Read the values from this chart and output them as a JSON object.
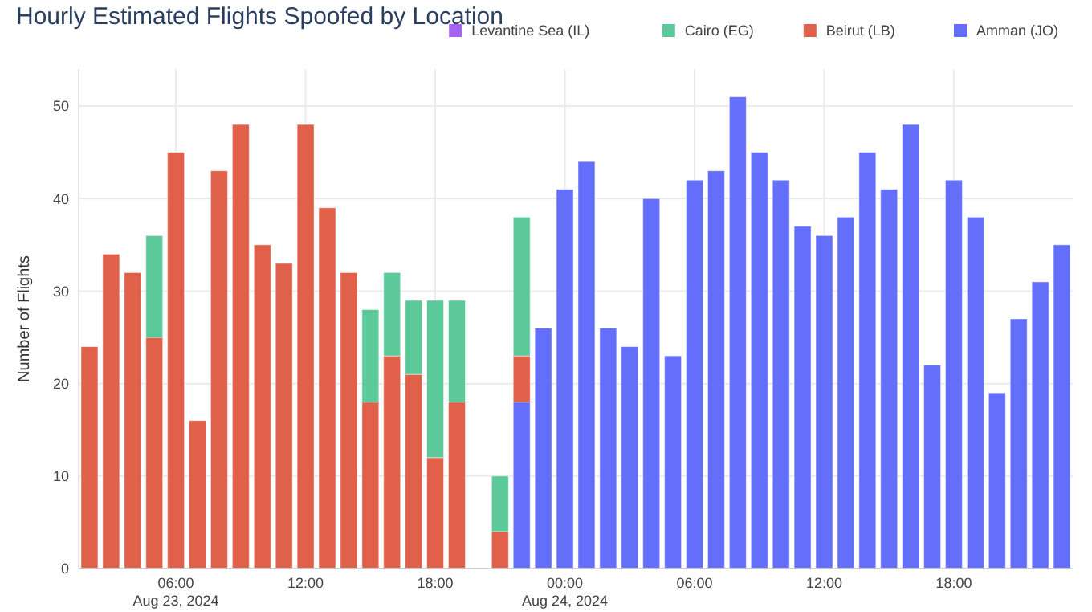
{
  "chart_data": {
    "type": "bar",
    "title": "Hourly Estimated Flights Spoofed by Location",
    "ylabel": "Number of Flights",
    "stacked": true,
    "grid": true,
    "legend": "top right",
    "x": [
      "2024-08-23T02:00",
      "2024-08-23T03:00",
      "2024-08-23T04:00",
      "2024-08-23T05:00",
      "2024-08-23T06:00",
      "2024-08-23T07:00",
      "2024-08-23T08:00",
      "2024-08-23T09:00",
      "2024-08-23T10:00",
      "2024-08-23T11:00",
      "2024-08-23T12:00",
      "2024-08-23T13:00",
      "2024-08-23T14:00",
      "2024-08-23T15:00",
      "2024-08-23T16:00",
      "2024-08-23T17:00",
      "2024-08-23T18:00",
      "2024-08-23T19:00",
      "2024-08-23T20:00",
      "2024-08-23T21:00",
      "2024-08-23T22:00",
      "2024-08-23T23:00",
      "2024-08-24T00:00",
      "2024-08-24T01:00",
      "2024-08-24T02:00",
      "2024-08-24T03:00",
      "2024-08-24T04:00",
      "2024-08-24T05:00",
      "2024-08-24T06:00",
      "2024-08-24T07:00",
      "2024-08-24T08:00",
      "2024-08-24T09:00",
      "2024-08-24T10:00",
      "2024-08-24T11:00",
      "2024-08-24T12:00",
      "2024-08-24T13:00",
      "2024-08-24T14:00",
      "2024-08-24T15:00",
      "2024-08-24T16:00",
      "2024-08-24T17:00",
      "2024-08-24T18:00",
      "2024-08-24T19:00",
      "2024-08-24T20:00",
      "2024-08-24T21:00",
      "2024-08-24T22:00",
      "2024-08-24T23:00"
    ],
    "series": [
      {
        "name": "Amman (JO)",
        "color": "#636efa",
        "values": [
          null,
          null,
          null,
          null,
          null,
          null,
          null,
          null,
          null,
          null,
          null,
          null,
          null,
          null,
          null,
          null,
          null,
          null,
          null,
          null,
          18,
          26,
          41,
          44,
          26,
          24,
          40,
          23,
          42,
          43,
          51,
          45,
          42,
          37,
          36,
          38,
          45,
          41,
          48,
          22,
          42,
          38,
          19,
          27,
          31,
          35
        ]
      },
      {
        "name": "Beirut (LB)",
        "color": "#e0604a",
        "values": [
          24,
          34,
          32,
          25,
          45,
          16,
          43,
          48,
          35,
          33,
          48,
          39,
          32,
          18,
          23,
          21,
          12,
          18,
          null,
          4,
          5,
          null,
          null,
          null,
          null,
          null,
          null,
          null,
          null,
          null,
          null,
          null,
          null,
          null,
          null,
          null,
          null,
          null,
          null,
          null,
          null,
          null,
          null,
          null,
          null,
          null
        ]
      },
      {
        "name": "Cairo (EG)",
        "color": "#5cc99a",
        "values": [
          null,
          null,
          null,
          11,
          null,
          null,
          null,
          null,
          null,
          null,
          null,
          null,
          null,
          10,
          9,
          8,
          17,
          11,
          null,
          6,
          15,
          null,
          null,
          null,
          null,
          null,
          null,
          null,
          null,
          null,
          null,
          null,
          null,
          null,
          null,
          null,
          null,
          null,
          null,
          null,
          null,
          null,
          null,
          null,
          null,
          null
        ]
      },
      {
        "name": "Levantine Sea (IL)",
        "color": "#a463f2",
        "values": [
          null,
          null,
          null,
          null,
          null,
          null,
          null,
          null,
          null,
          null,
          null,
          null,
          null,
          null,
          null,
          null,
          null,
          null,
          null,
          null,
          null,
          null,
          null,
          null,
          null,
          null,
          null,
          null,
          null,
          null,
          null,
          null,
          null,
          null,
          null,
          null,
          null,
          null,
          null,
          null,
          null,
          null,
          null,
          null,
          null,
          null
        ]
      }
    ],
    "xlim": [
      "2024-08-23T01:30",
      "2024-08-24T23:30"
    ],
    "xticks": [
      {
        "value": "2024-08-23T06:00",
        "label": "06:00\nAug 23, 2024"
      },
      {
        "value": "2024-08-23T12:00",
        "label": "12:00"
      },
      {
        "value": "2024-08-23T18:00",
        "label": "18:00"
      },
      {
        "value": "2024-08-24T00:00",
        "label": "00:00\nAug 24, 2024"
      },
      {
        "value": "2024-08-24T06:00",
        "label": "06:00"
      },
      {
        "value": "2024-08-24T12:00",
        "label": "12:00"
      },
      {
        "value": "2024-08-24T18:00",
        "label": "18:00"
      }
    ],
    "ylim": [
      0,
      54
    ],
    "yticks": [
      0,
      10,
      20,
      30,
      40,
      50
    ]
  }
}
